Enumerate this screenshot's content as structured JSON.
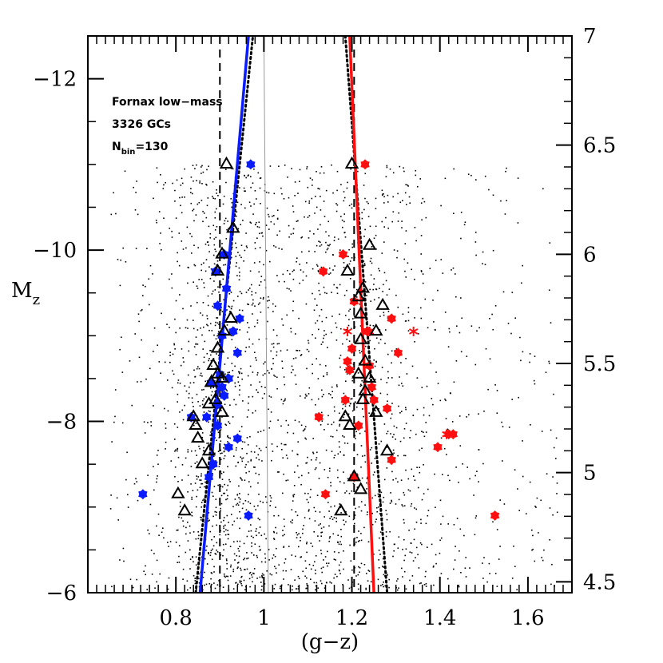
{
  "chart_data": {
    "type": "scatter",
    "title": "",
    "xlabel": "(g−z)",
    "ylabel": "M",
    "ylabel_sub": "z",
    "xlim": [
      0.6,
      1.7
    ],
    "ylim": [
      -6,
      -12.5
    ],
    "y2lim": [
      4.45,
      7.0
    ],
    "x_ticks": [
      0.8,
      1,
      1.2,
      1.4,
      1.6
    ],
    "x_tick_labels": [
      "0.8",
      "1",
      "1.2",
      "1.4",
      "1.6"
    ],
    "y_ticks": [
      -12,
      -10,
      -8,
      -6
    ],
    "y_tick_labels": [
      "−12",
      "−10",
      "−8",
      "−6"
    ],
    "y2_ticks": [
      4.5,
      5,
      5.5,
      6,
      6.5,
      7
    ],
    "y2_tick_labels": [
      "4.5",
      "5",
      "5.5",
      "6",
      "6.5",
      "7"
    ],
    "annotations": {
      "line1": "Fornax low−mass",
      "line2": "3326 GCs",
      "nbin_prefix": "N",
      "nbin_sub": "bin",
      "nbin_suffix": "=130"
    },
    "colors": {
      "blue": "#0a1cff",
      "red": "#ff1010",
      "black": "#000000",
      "grey": "#9a9a9a"
    },
    "background_points_count": 3326,
    "background_seed": 7,
    "lines": {
      "blue_fit": {
        "points": [
          [
            0.855,
            -6.0
          ],
          [
            0.965,
            -12.5
          ]
        ]
      },
      "red_fit": {
        "points": [
          [
            1.195,
            -12.5
          ],
          [
            1.25,
            -6.0
          ]
        ]
      },
      "blue_dotted": {
        "points": [
          [
            0.845,
            -6.0
          ],
          [
            0.975,
            -12.5
          ]
        ]
      },
      "red_dotted": {
        "points": [
          [
            1.185,
            -12.5
          ],
          [
            1.28,
            -6.0
          ]
        ]
      },
      "dashed_verticals": [
        0.9,
        1.205
      ],
      "grey_line": {
        "points": [
          [
            1.0,
            -12.5
          ],
          [
            1.01,
            -6.0
          ]
        ]
      }
    },
    "series": [
      {
        "name": "blue peaks",
        "marker": "star",
        "color": "#0a1cff",
        "points": [
          [
            0.97,
            -11.0
          ],
          [
            0.91,
            -9.95
          ],
          [
            0.89,
            -9.75
          ],
          [
            0.915,
            -9.55
          ],
          [
            0.895,
            -9.35
          ],
          [
            0.945,
            -9.2
          ],
          [
            0.93,
            -9.05
          ],
          [
            0.905,
            -9.0
          ],
          [
            0.94,
            -8.8
          ],
          [
            0.9,
            -8.55
          ],
          [
            0.905,
            -8.4
          ],
          [
            0.92,
            -8.5
          ],
          [
            0.88,
            -8.45
          ],
          [
            0.91,
            -8.3
          ],
          [
            0.895,
            -8.2
          ],
          [
            0.87,
            -8.05
          ],
          [
            0.835,
            -8.05
          ],
          [
            0.895,
            -7.95
          ],
          [
            0.94,
            -7.8
          ],
          [
            0.92,
            -7.7
          ],
          [
            0.885,
            -7.5
          ],
          [
            0.875,
            -7.35
          ],
          [
            0.965,
            -6.9
          ],
          [
            0.725,
            -7.15
          ]
        ]
      },
      {
        "name": "red peaks",
        "marker": "star",
        "color": "#ff1010",
        "points": [
          [
            1.23,
            -11.0
          ],
          [
            1.18,
            -9.95
          ],
          [
            1.135,
            -9.75
          ],
          [
            1.205,
            -9.4
          ],
          [
            1.29,
            -9.2
          ],
          [
            1.235,
            -9.05
          ],
          [
            1.2,
            -8.85
          ],
          [
            1.305,
            -8.8
          ],
          [
            1.19,
            -8.7
          ],
          [
            1.24,
            -8.65
          ],
          [
            1.245,
            -8.4
          ],
          [
            1.185,
            -8.25
          ],
          [
            1.28,
            -8.15
          ],
          [
            1.125,
            -8.05
          ],
          [
            1.215,
            -7.95
          ],
          [
            1.42,
            -7.85
          ],
          [
            1.43,
            -7.85
          ],
          [
            1.395,
            -7.7
          ],
          [
            1.29,
            -7.55
          ],
          [
            1.205,
            -7.35
          ],
          [
            1.14,
            -7.15
          ],
          [
            1.525,
            -6.9
          ],
          [
            1.195,
            -8.6
          ],
          [
            1.25,
            -8.25
          ]
        ]
      },
      {
        "name": "red asterisks",
        "marker": "asterisk",
        "color": "#ff1010",
        "points": [
          [
            1.19,
            -9.05
          ],
          [
            1.34,
            -9.05
          ],
          [
            1.24,
            -9.05
          ],
          [
            1.415,
            -7.85
          ]
        ]
      },
      {
        "name": "triangles",
        "marker": "triangle",
        "color": "#000000",
        "points": [
          [
            0.915,
            -11.0
          ],
          [
            0.93,
            -10.25
          ],
          [
            0.905,
            -9.95
          ],
          [
            0.895,
            -9.75
          ],
          [
            0.925,
            -9.2
          ],
          [
            0.91,
            -9.05
          ],
          [
            0.895,
            -8.85
          ],
          [
            0.885,
            -8.65
          ],
          [
            0.895,
            -8.55
          ],
          [
            0.905,
            -8.5
          ],
          [
            0.88,
            -8.45
          ],
          [
            0.875,
            -8.2
          ],
          [
            0.89,
            -8.25
          ],
          [
            0.905,
            -8.1
          ],
          [
            0.84,
            -8.05
          ],
          [
            0.845,
            -7.95
          ],
          [
            0.85,
            -7.8
          ],
          [
            0.875,
            -7.65
          ],
          [
            0.86,
            -7.5
          ],
          [
            0.805,
            -7.15
          ],
          [
            0.82,
            -6.95
          ],
          [
            1.2,
            -11.0
          ],
          [
            1.24,
            -10.05
          ],
          [
            1.19,
            -9.75
          ],
          [
            1.225,
            -9.55
          ],
          [
            1.215,
            -9.45
          ],
          [
            1.27,
            -9.35
          ],
          [
            1.22,
            -9.25
          ],
          [
            1.255,
            -9.05
          ],
          [
            1.22,
            -8.95
          ],
          [
            1.23,
            -8.7
          ],
          [
            1.215,
            -8.55
          ],
          [
            1.24,
            -8.5
          ],
          [
            1.23,
            -8.35
          ],
          [
            1.225,
            -8.25
          ],
          [
            1.255,
            -8.1
          ],
          [
            1.185,
            -8.05
          ],
          [
            1.195,
            -7.95
          ],
          [
            1.28,
            -7.65
          ],
          [
            1.205,
            -7.35
          ],
          [
            1.22,
            -7.2
          ],
          [
            1.175,
            -6.95
          ]
        ]
      }
    ]
  }
}
